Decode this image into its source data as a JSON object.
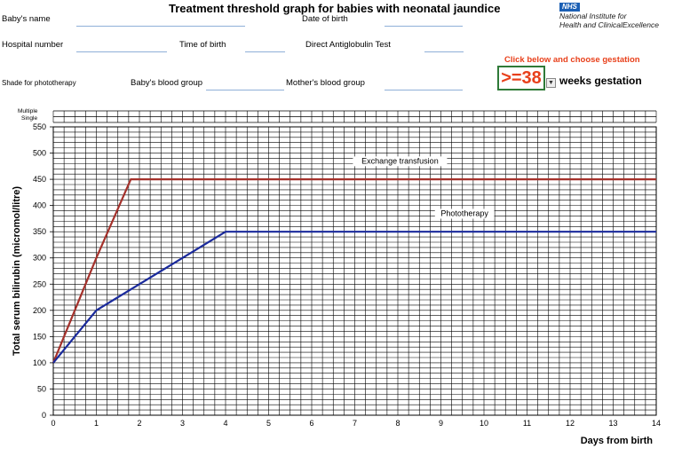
{
  "header": {
    "title": "Treatment threshold graph for babies with neonatal jaundice",
    "nhs_badge": "NHS",
    "nice_line1": "National Institute for",
    "nice_line2": "Health and ClinicalExcellence"
  },
  "form": {
    "babys_name": "Baby's name",
    "date_of_birth": "Date of birth",
    "hospital_number": "Hospital number",
    "time_of_birth": "Time of birth",
    "direct_antiglobulin": "Direct Antiglobulin Test",
    "shade_for_phototherapy": "Shade for phototherapy",
    "babys_blood_group": "Baby's blood group",
    "mothers_blood_group": "Mother's blood group"
  },
  "gestation": {
    "click_note": "Click below and choose gestation",
    "value": ">=38",
    "suffix": "weeks gestation"
  },
  "birth_type_labels": {
    "multiple": "Multiple",
    "single": "Single"
  },
  "colors": {
    "exchange": "#a4312b",
    "phototherapy": "#1a2a9c",
    "accent": "#e8401b",
    "nhs_blue": "#1b5fb4"
  },
  "chart_data": {
    "type": "line",
    "title": "",
    "xlabel": "Days from birth",
    "ylabel": "Total serum bilirubin (micromol/litre)",
    "xlim": [
      0,
      14
    ],
    "ylim": [
      0,
      550
    ],
    "xticks": [
      0,
      1,
      2,
      3,
      4,
      5,
      6,
      7,
      8,
      9,
      10,
      11,
      12,
      13,
      14
    ],
    "yticks": [
      0,
      50,
      100,
      150,
      200,
      250,
      300,
      350,
      400,
      450,
      500,
      550
    ],
    "grid": true,
    "series": [
      {
        "name": "Exchange transfusion",
        "color": "#a4312b",
        "x": [
          0,
          1,
          1.8,
          14
        ],
        "y": [
          100,
          300,
          450,
          450
        ]
      },
      {
        "name": "Phototherapy",
        "color": "#1a2a9c",
        "x": [
          0,
          1,
          4,
          14
        ],
        "y": [
          100,
          200,
          350,
          350
        ]
      }
    ]
  }
}
